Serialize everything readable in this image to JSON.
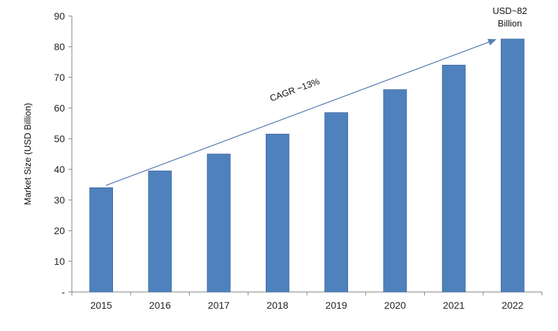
{
  "chart_data": {
    "type": "bar",
    "categories": [
      "2015",
      "2016",
      "2017",
      "2018",
      "2019",
      "2020",
      "2021",
      "2022"
    ],
    "values": [
      34,
      39.5,
      45,
      51.5,
      58.5,
      66,
      74,
      82.5
    ],
    "ylabel": "Market Size (USD Billion)",
    "xlabel": "",
    "ylim": [
      0,
      90
    ],
    "yticks": [
      0,
      10,
      20,
      30,
      40,
      50,
      60,
      70,
      80,
      90
    ],
    "ytick_labels": [
      "-",
      "10",
      "20",
      "30",
      "40",
      "50",
      "60",
      "70",
      "80",
      "90"
    ],
    "grid": false,
    "legend": "none",
    "bar_color": "#4f81bd",
    "bar_edge_color": "#3d6a9e",
    "annotations": {
      "cagr_label": "CAGR ~13%",
      "end_label_line1": "USD~82",
      "end_label_line2": "Billion",
      "arrow_color": "#5a7fb5"
    }
  }
}
